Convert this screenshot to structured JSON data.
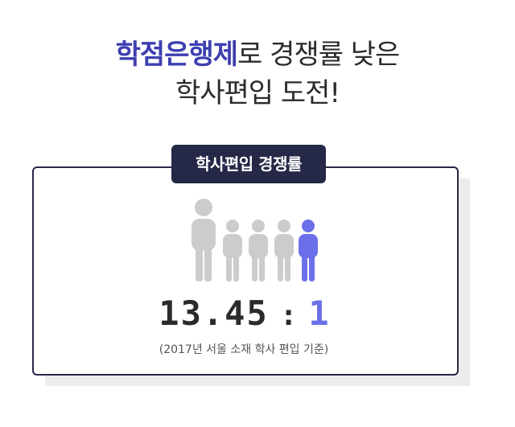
{
  "headline": {
    "line1_accent": "학점은행제",
    "line1_rest": "로 경쟁률 낮은",
    "line2": "학사편입 도전!"
  },
  "card": {
    "tag": "학사편입 경쟁률",
    "ratio_left": "13.45",
    "ratio_separator": ":",
    "ratio_right": "1",
    "note": "(2017년 서울 소재 학사 편입 기준)"
  },
  "icons": {
    "person_large": "person-icon",
    "person_small": "person-icon",
    "person_highlight": "person-icon"
  },
  "colors": {
    "accent": "#3d3fb0",
    "navy": "#262848",
    "highlight": "#6b70e8",
    "gray_person": "#cccccc"
  }
}
